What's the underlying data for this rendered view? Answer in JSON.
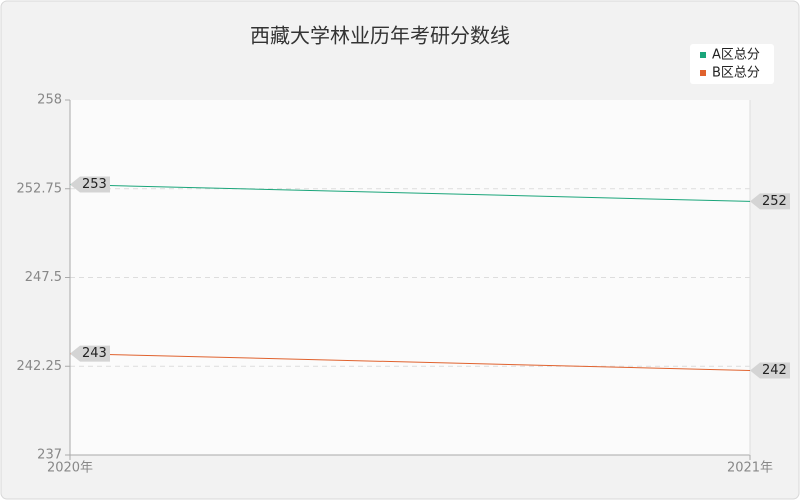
{
  "chart_data": {
    "type": "line",
    "title": "西藏大学林业历年考研分数线",
    "categories": [
      "2020年",
      "2021年"
    ],
    "series": [
      {
        "name": "A区总分",
        "color": "#1aa57a",
        "values": [
          253,
          252
        ]
      },
      {
        "name": "B区总分",
        "color": "#e0622e",
        "values": [
          243,
          242
        ]
      }
    ],
    "ylim": [
      237,
      258
    ],
    "yticks": [
      237,
      242.25,
      247.5,
      252.75,
      258
    ],
    "grid": true,
    "legend": "top-right"
  }
}
